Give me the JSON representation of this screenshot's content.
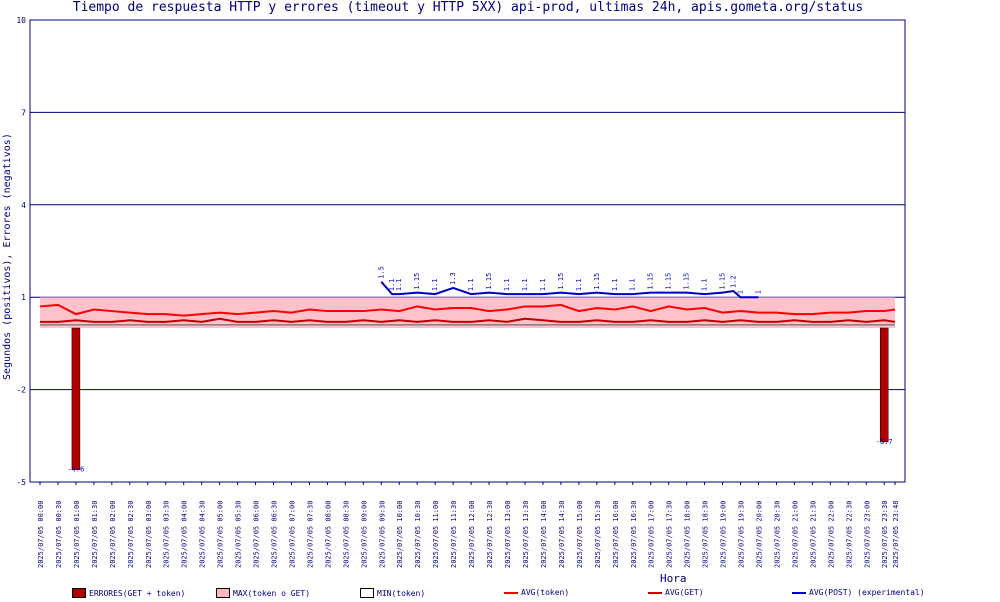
{
  "chart_data": {
    "type": "line",
    "title": "Tiempo de respuesta HTTP y errores (timeout y HTTP 5XX) api-prod, ultimas 24h, apis.gometa.org/status",
    "ylabel": "Segundos (positivos), Errores (negativos)",
    "xlabel": "Hora",
    "ylim": [
      -5,
      10
    ],
    "yticks": [
      10,
      7,
      4,
      1,
      -2,
      -5
    ],
    "x_tick_labels": [
      "2025/07/05 00:00",
      "2025/07/05 00:30",
      "2025/07/05 01:00",
      "2025/07/05 01:30",
      "2025/07/05 02:00",
      "2025/07/05 02:30",
      "2025/07/05 03:00",
      "2025/07/05 03:30",
      "2025/07/05 04:00",
      "2025/07/05 04:30",
      "2025/07/05 05:00",
      "2025/07/05 05:30",
      "2025/07/05 06:00",
      "2025/07/05 06:30",
      "2025/07/05 07:00",
      "2025/07/05 07:30",
      "2025/07/05 08:00",
      "2025/07/05 08:30",
      "2025/07/05 09:00",
      "2025/07/05 09:30",
      "2025/07/05 10:00",
      "2025/07/05 10:30",
      "2025/07/05 11:00",
      "2025/07/05 11:30",
      "2025/07/05 12:00",
      "2025/07/05 12:30",
      "2025/07/05 13:00",
      "2025/07/05 13:30",
      "2025/07/05 14:00",
      "2025/07/05 14:30",
      "2025/07/05 15:00",
      "2025/07/05 15:30",
      "2025/07/05 16:00",
      "2025/07/05 16:30",
      "2025/07/05 17:00",
      "2025/07/05 17:30",
      "2025/07/05 18:00",
      "2025/07/05 18:30",
      "2025/07/05 19:00",
      "2025/07/05 19:30",
      "2025/07/05 20:00",
      "2025/07/05 20:30",
      "2025/07/05 21:00",
      "2025/07/05 21:30",
      "2025/07/05 22:00",
      "2025/07/05 22:30",
      "2025/07/05 23:00",
      "2025/07/05 23:30",
      "2025/07/05 23:48"
    ],
    "x_tick_hours": [
      0,
      0.5,
      1,
      1.5,
      2,
      2.5,
      3,
      3.5,
      4,
      4.5,
      5,
      5.5,
      6,
      6.5,
      7,
      7.5,
      8,
      8.5,
      9,
      9.5,
      10,
      10.5,
      11,
      11.5,
      12,
      12.5,
      13,
      13.5,
      14,
      14.5,
      15,
      15.5,
      16,
      16.5,
      17,
      17.5,
      18,
      18.5,
      19,
      19.5,
      20,
      20.5,
      21,
      21.5,
      22,
      22.5,
      23,
      23.5,
      23.8
    ],
    "x_range_hours": [
      0,
      23.8
    ],
    "series": [
      {
        "name": "MAX(token o GET)",
        "kind": "band",
        "color": "#ffb6c1",
        "x": [
          0,
          1,
          2,
          3,
          4,
          5,
          6,
          7,
          8,
          9,
          9.5,
          10,
          11,
          12,
          13,
          14,
          15,
          16,
          17,
          18,
          19,
          19.5,
          20,
          21,
          22,
          23,
          23.8
        ],
        "values": [
          1,
          1,
          1,
          1,
          1,
          1,
          1,
          1,
          1,
          1,
          1,
          1,
          1,
          1,
          1,
          1,
          1,
          1,
          1,
          1,
          1,
          1,
          1,
          1,
          1,
          1,
          1
        ]
      },
      {
        "name": "MIN(token)",
        "kind": "line",
        "color": "#555555",
        "x": [
          0,
          23.8
        ],
        "values": [
          0.1,
          0.1
        ]
      },
      {
        "name": "AVG(token)",
        "kind": "line",
        "color": "#ff0000",
        "x": [
          0,
          0.5,
          1,
          1.5,
          2,
          2.5,
          3,
          3.5,
          4,
          4.5,
          5,
          5.5,
          6,
          6.5,
          7,
          7.5,
          8,
          8.5,
          9,
          9.5,
          10,
          10.5,
          11,
          11.5,
          12,
          12.5,
          13,
          13.5,
          14,
          14.5,
          15,
          15.5,
          16,
          16.5,
          17,
          17.5,
          18,
          18.5,
          19,
          19.5,
          20,
          20.5,
          21,
          21.5,
          22,
          22.5,
          23,
          23.5,
          23.8
        ],
        "values": [
          0.7,
          0.75,
          0.45,
          0.6,
          0.55,
          0.5,
          0.45,
          0.45,
          0.4,
          0.45,
          0.5,
          0.45,
          0.5,
          0.55,
          0.5,
          0.6,
          0.55,
          0.55,
          0.55,
          0.6,
          0.55,
          0.7,
          0.6,
          0.65,
          0.65,
          0.55,
          0.6,
          0.7,
          0.7,
          0.75,
          0.55,
          0.65,
          0.6,
          0.7,
          0.55,
          0.7,
          0.6,
          0.65,
          0.5,
          0.55,
          0.5,
          0.5,
          0.45,
          0.45,
          0.5,
          0.5,
          0.55,
          0.55,
          0.6
        ]
      },
      {
        "name": "AVG(GET)",
        "kind": "line",
        "color": "#c00000",
        "x": [
          0,
          0.5,
          1,
          1.5,
          2,
          2.5,
          3,
          3.5,
          4,
          4.5,
          5,
          5.5,
          6,
          6.5,
          7,
          7.5,
          8,
          8.5,
          9,
          9.5,
          10,
          10.5,
          11,
          11.5,
          12,
          12.5,
          13,
          13.5,
          14,
          14.5,
          15,
          15.5,
          16,
          16.5,
          17,
          17.5,
          18,
          18.5,
          19,
          19.5,
          20,
          20.5,
          21,
          21.5,
          22,
          22.5,
          23,
          23.5,
          23.8
        ],
        "values": [
          0.2,
          0.2,
          0.25,
          0.2,
          0.2,
          0.25,
          0.2,
          0.2,
          0.25,
          0.2,
          0.3,
          0.2,
          0.2,
          0.25,
          0.2,
          0.25,
          0.2,
          0.2,
          0.25,
          0.2,
          0.25,
          0.2,
          0.25,
          0.2,
          0.2,
          0.25,
          0.2,
          0.3,
          0.25,
          0.2,
          0.2,
          0.25,
          0.2,
          0.2,
          0.25,
          0.2,
          0.2,
          0.25,
          0.2,
          0.25,
          0.2,
          0.2,
          0.25,
          0.2,
          0.2,
          0.25,
          0.2,
          0.25,
          0.2
        ]
      },
      {
        "name": "AVG(POST) (experimental)",
        "kind": "line",
        "color": "#0000c0",
        "x": [
          9.5,
          9.8,
          10,
          10.5,
          11,
          11.5,
          12,
          12.5,
          13,
          13.5,
          14,
          14.5,
          15,
          15.5,
          16,
          16.5,
          17,
          17.5,
          18,
          18.5,
          19,
          19.3,
          19.5,
          20
        ],
        "values": [
          1.5,
          1.1,
          1.1,
          1.15,
          1.1,
          1.3,
          1.1,
          1.15,
          1.1,
          1.1,
          1.1,
          1.15,
          1.1,
          1.15,
          1.1,
          1.1,
          1.15,
          1.15,
          1.15,
          1.1,
          1.15,
          1.2,
          1.0,
          1.0
        ]
      },
      {
        "name": "ERRORES(GET + token)",
        "kind": "bar",
        "color": "#b00000",
        "x": [
          1,
          23.5
        ],
        "values": [
          -4.6,
          -3.7
        ]
      }
    ],
    "grid": true,
    "legend_placement": "bottom"
  },
  "legend": [
    {
      "label": "ERRORES(GET + token)",
      "color": "#b00000",
      "shape": "box"
    },
    {
      "label": "MAX(token o GET)",
      "color": "#ffb6c1",
      "shape": "box"
    },
    {
      "label": "MIN(token)",
      "color": "#ffffff",
      "shape": "box"
    },
    {
      "label": "AVG(token)",
      "color": "#ff0000",
      "shape": "line"
    },
    {
      "label": "AVG(GET)",
      "color": "#c00000",
      "shape": "line"
    },
    {
      "label": "AVG(POST) (experimental)",
      "color": "#0000c0",
      "shape": "line"
    }
  ],
  "colors": {
    "axis": "#00007a",
    "grid": "#00007a"
  }
}
